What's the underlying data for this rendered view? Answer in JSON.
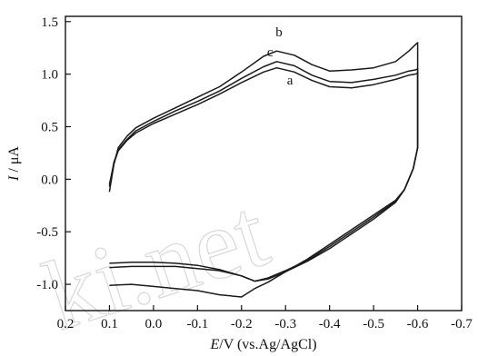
{
  "watermark": "ki.net",
  "chart_data": {
    "type": "line",
    "title": "",
    "xlabel_italic": "E",
    "xlabel_rest": "/V (vs.Ag/AgCl)",
    "ylabel_italic": "I",
    "ylabel_rest": " / μA",
    "x_ticks": [
      "0.2",
      "0.1",
      "0.0",
      "-0.1",
      "-0.2",
      "-0.3",
      "-0.4",
      "-0.5",
      "-0.6",
      "-0.7"
    ],
    "x_tick_values": [
      0.2,
      0.1,
      0.0,
      -0.1,
      -0.2,
      -0.3,
      -0.4,
      -0.5,
      -0.6,
      -0.7
    ],
    "y_ticks": [
      "-1.0",
      "-0.5",
      "0.0",
      "0.5",
      "1.0",
      "1.5"
    ],
    "y_tick_values": [
      -1.0,
      -0.5,
      0.0,
      0.5,
      1.0,
      1.5
    ],
    "xlim": [
      0.2,
      -0.7
    ],
    "ylim": [
      -1.25,
      1.55
    ],
    "x_reversed": true,
    "grid": false,
    "series": [
      {
        "label": "a",
        "label_at": [
          -0.31,
          0.9
        ],
        "x": [
          0.1,
          0.09,
          0.08,
          0.06,
          0.04,
          0.0,
          -0.05,
          -0.1,
          -0.15,
          -0.2,
          -0.25,
          -0.28,
          -0.32,
          -0.36,
          -0.4,
          -0.45,
          -0.5,
          -0.55,
          -0.58,
          -0.595,
          -0.6,
          -0.6,
          -0.59,
          -0.57,
          -0.55,
          -0.5,
          -0.45,
          -0.4,
          -0.35,
          -0.3,
          -0.26,
          -0.23,
          -0.2,
          -0.15,
          -0.1,
          -0.05,
          0.0,
          0.05,
          0.1
        ],
        "y": [
          -0.05,
          0.15,
          0.27,
          0.37,
          0.44,
          0.53,
          0.62,
          0.71,
          0.81,
          0.92,
          1.02,
          1.06,
          1.02,
          0.94,
          0.88,
          0.87,
          0.9,
          0.95,
          0.99,
          1.0,
          1.01,
          0.3,
          0.1,
          -0.1,
          -0.22,
          -0.38,
          -0.52,
          -0.66,
          -0.78,
          -0.88,
          -0.95,
          -0.97,
          -0.92,
          -0.87,
          -0.85,
          -0.83,
          -0.83,
          -0.83,
          -0.84
        ]
      },
      {
        "label": "b",
        "label_at": [
          -0.285,
          1.36
        ],
        "x": [
          0.1,
          0.09,
          0.08,
          0.06,
          0.04,
          0.0,
          -0.05,
          -0.1,
          -0.15,
          -0.2,
          -0.25,
          -0.28,
          -0.32,
          -0.36,
          -0.4,
          -0.45,
          -0.5,
          -0.55,
          -0.58,
          -0.595,
          -0.6,
          -0.6,
          -0.59,
          -0.57,
          -0.55,
          -0.5,
          -0.45,
          -0.4,
          -0.35,
          -0.3,
          -0.26,
          -0.23,
          -0.2,
          -0.15,
          -0.1,
          -0.05,
          0.0,
          0.05,
          0.1
        ],
        "y": [
          -0.12,
          0.14,
          0.3,
          0.41,
          0.49,
          0.58,
          0.68,
          0.78,
          0.88,
          1.02,
          1.17,
          1.22,
          1.18,
          1.09,
          1.03,
          1.04,
          1.06,
          1.12,
          1.22,
          1.28,
          1.3,
          0.3,
          0.1,
          -0.1,
          -0.2,
          -0.34,
          -0.48,
          -0.62,
          -0.76,
          -0.88,
          -0.98,
          -1.04,
          -1.12,
          -1.1,
          -1.06,
          -1.04,
          -1.02,
          -1.0,
          -1.01
        ]
      },
      {
        "label": "c",
        "label_at": [
          -0.265,
          1.17
        ],
        "x": [
          0.1,
          0.09,
          0.08,
          0.06,
          0.04,
          0.0,
          -0.05,
          -0.1,
          -0.15,
          -0.2,
          -0.25,
          -0.28,
          -0.32,
          -0.36,
          -0.4,
          -0.45,
          -0.5,
          -0.55,
          -0.58,
          -0.595,
          -0.6,
          -0.6,
          -0.59,
          -0.57,
          -0.55,
          -0.5,
          -0.45,
          -0.4,
          -0.35,
          -0.3,
          -0.26,
          -0.23,
          -0.2,
          -0.15,
          -0.1,
          -0.05,
          0.0,
          0.05,
          0.1
        ],
        "y": [
          -0.07,
          0.16,
          0.28,
          0.38,
          0.46,
          0.55,
          0.65,
          0.74,
          0.84,
          0.96,
          1.07,
          1.12,
          1.08,
          0.99,
          0.93,
          0.92,
          0.95,
          0.99,
          1.03,
          1.04,
          1.05,
          0.3,
          0.1,
          -0.1,
          -0.21,
          -0.36,
          -0.5,
          -0.64,
          -0.77,
          -0.87,
          -0.94,
          -0.97,
          -0.92,
          -0.86,
          -0.82,
          -0.8,
          -0.79,
          -0.79,
          -0.8
        ]
      }
    ]
  }
}
